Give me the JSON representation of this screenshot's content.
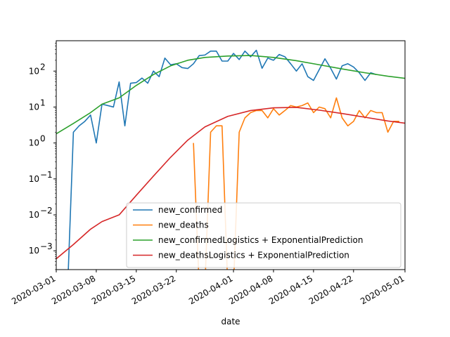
{
  "chart_data": {
    "type": "line",
    "xlabel": "date",
    "ylabel": "",
    "title": "",
    "yscale": "log",
    "ylim": [
      0.0003,
      700
    ],
    "xlim": [
      "2020-03-01",
      "2020-05-01"
    ],
    "x_ticks": [
      "2020-03-01",
      "2020-03-08",
      "2020-03-15",
      "2020-03-22",
      "2020-04-01",
      "2020-04-08",
      "2020-04-15",
      "2020-04-22",
      "2020-05-01"
    ],
    "y_ticks": [
      {
        "value": 0.001,
        "base": "10",
        "exp": "−3"
      },
      {
        "value": 0.01,
        "base": "10",
        "exp": "−2"
      },
      {
        "value": 0.1,
        "base": "10",
        "exp": "−1"
      },
      {
        "value": 1,
        "base": "10",
        "exp": "0"
      },
      {
        "value": 10,
        "base": "10",
        "exp": "1"
      },
      {
        "value": 100,
        "base": "10",
        "exp": "2"
      }
    ],
    "grid": false,
    "legend_position": "lower-right",
    "series": [
      {
        "name": "new_confirmed",
        "color": "#1f77b4",
        "points": [
          [
            "2020-03-03",
            0.0001
          ],
          [
            "2020-03-04",
            2
          ],
          [
            "2020-03-05",
            3
          ],
          [
            "2020-03-06",
            4
          ],
          [
            "2020-03-07",
            6
          ],
          [
            "2020-03-08",
            1
          ],
          [
            "2020-03-09",
            12
          ],
          [
            "2020-03-10",
            11
          ],
          [
            "2020-03-11",
            10
          ],
          [
            "2020-03-12",
            50
          ],
          [
            "2020-03-13",
            3
          ],
          [
            "2020-03-14",
            46
          ],
          [
            "2020-03-15",
            48
          ],
          [
            "2020-03-16",
            64
          ],
          [
            "2020-03-17",
            46
          ],
          [
            "2020-03-18",
            100
          ],
          [
            "2020-03-19",
            70
          ],
          [
            "2020-03-20",
            230
          ],
          [
            "2020-03-21",
            150
          ],
          [
            "2020-03-22",
            160
          ],
          [
            "2020-03-23",
            125
          ],
          [
            "2020-03-24",
            118
          ],
          [
            "2020-03-25",
            160
          ],
          [
            "2020-03-26",
            270
          ],
          [
            "2020-03-27",
            280
          ],
          [
            "2020-03-28",
            360
          ],
          [
            "2020-03-29",
            360
          ],
          [
            "2020-03-30",
            190
          ],
          [
            "2020-03-31",
            190
          ],
          [
            "2020-04-01",
            310
          ],
          [
            "2020-04-02",
            210
          ],
          [
            "2020-04-03",
            360
          ],
          [
            "2020-04-04",
            250
          ],
          [
            "2020-04-05",
            380
          ],
          [
            "2020-04-06",
            120
          ],
          [
            "2020-04-07",
            230
          ],
          [
            "2020-04-08",
            200
          ],
          [
            "2020-04-09",
            290
          ],
          [
            "2020-04-10",
            250
          ],
          [
            "2020-04-11",
            160
          ],
          [
            "2020-04-12",
            100
          ],
          [
            "2020-04-13",
            160
          ],
          [
            "2020-04-14",
            70
          ],
          [
            "2020-04-15",
            55
          ],
          [
            "2020-04-16",
            110
          ],
          [
            "2020-04-17",
            220
          ],
          [
            "2020-04-18",
            120
          ],
          [
            "2020-04-19",
            60
          ],
          [
            "2020-04-20",
            140
          ],
          [
            "2020-04-21",
            160
          ],
          [
            "2020-04-22",
            130
          ],
          [
            "2020-04-23",
            90
          ],
          [
            "2020-04-24",
            55
          ],
          [
            "2020-04-25",
            90
          ],
          [
            "2020-04-26",
            80
          ]
        ]
      },
      {
        "name": "new_deaths",
        "color": "#ff7f0e",
        "points": [
          [
            "2020-03-25",
            1
          ],
          [
            "2020-03-26",
            0.0001
          ],
          [
            "2020-03-27",
            0.0001
          ],
          [
            "2020-03-28",
            2
          ],
          [
            "2020-03-29",
            3
          ],
          [
            "2020-03-30",
            3
          ],
          [
            "2020-03-31",
            0.0001
          ],
          [
            "2020-04-01",
            0.0001
          ],
          [
            "2020-04-02",
            2
          ],
          [
            "2020-04-03",
            5
          ],
          [
            "2020-04-04",
            7
          ],
          [
            "2020-04-05",
            8
          ],
          [
            "2020-04-06",
            8
          ],
          [
            "2020-04-07",
            5
          ],
          [
            "2020-04-08",
            9
          ],
          [
            "2020-04-09",
            6
          ],
          [
            "2020-04-10",
            8
          ],
          [
            "2020-04-11",
            11
          ],
          [
            "2020-04-12",
            10
          ],
          [
            "2020-04-13",
            11
          ],
          [
            "2020-04-14",
            13
          ],
          [
            "2020-04-15",
            7
          ],
          [
            "2020-04-16",
            10
          ],
          [
            "2020-04-17",
            9
          ],
          [
            "2020-04-18",
            5
          ],
          [
            "2020-04-19",
            18
          ],
          [
            "2020-04-20",
            5
          ],
          [
            "2020-04-21",
            3
          ],
          [
            "2020-04-22",
            4
          ],
          [
            "2020-04-23",
            8
          ],
          [
            "2020-04-24",
            5
          ],
          [
            "2020-04-25",
            8
          ],
          [
            "2020-04-26",
            7
          ],
          [
            "2020-04-27",
            7
          ],
          [
            "2020-04-28",
            2
          ],
          [
            "2020-04-29",
            4
          ],
          [
            "2020-04-30",
            4
          ]
        ]
      },
      {
        "name": "new_confirmedLogistics + ExponentialPrediction",
        "color": "#2ca02c",
        "points": [
          [
            "2020-03-01",
            1.8
          ],
          [
            "2020-03-04",
            3.5
          ],
          [
            "2020-03-07",
            7
          ],
          [
            "2020-03-09",
            12
          ],
          [
            "2020-03-12",
            18
          ],
          [
            "2020-03-15",
            40
          ],
          [
            "2020-03-18",
            80
          ],
          [
            "2020-03-21",
            140
          ],
          [
            "2020-03-24",
            200
          ],
          [
            "2020-03-27",
            240
          ],
          [
            "2020-03-31",
            262
          ],
          [
            "2020-04-04",
            272
          ],
          [
            "2020-04-08",
            240
          ],
          [
            "2020-04-12",
            195
          ],
          [
            "2020-04-16",
            150
          ],
          [
            "2020-04-20",
            115
          ],
          [
            "2020-04-24",
            90
          ],
          [
            "2020-04-28",
            72
          ],
          [
            "2020-05-04",
            55
          ]
        ]
      },
      {
        "name": "new_deathsLogistics + ExponentialPrediction",
        "color": "#d62728",
        "points": [
          [
            "2020-03-01",
            0.0006
          ],
          [
            "2020-03-04",
            0.0015
          ],
          [
            "2020-03-07",
            0.004
          ],
          [
            "2020-03-09",
            0.0065
          ],
          [
            "2020-03-12",
            0.01
          ],
          [
            "2020-03-15",
            0.035
          ],
          [
            "2020-03-18",
            0.12
          ],
          [
            "2020-03-21",
            0.4
          ],
          [
            "2020-03-24",
            1.2
          ],
          [
            "2020-03-27",
            2.8
          ],
          [
            "2020-03-31",
            5.5
          ],
          [
            "2020-04-04",
            8
          ],
          [
            "2020-04-08",
            9.5
          ],
          [
            "2020-04-12",
            9.8
          ],
          [
            "2020-04-16",
            8.2
          ],
          [
            "2020-04-20",
            6.6
          ],
          [
            "2020-04-24",
            5.2
          ],
          [
            "2020-04-28",
            4.1
          ],
          [
            "2020-05-04",
            3.1
          ]
        ]
      }
    ]
  }
}
